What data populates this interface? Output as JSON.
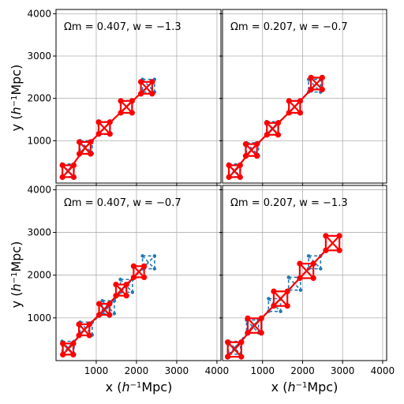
{
  "figure": {
    "xlabel": "x (h⁻¹Mpc)",
    "ylabel": "y (h⁻¹Mpc)"
  },
  "colors": {
    "reference": "#1f77b4",
    "model": "#ff0000",
    "grid": "#b0b0b0"
  },
  "chart_data": [
    {
      "type": "line",
      "annotation": "Ωm = 0.407,  w = −1.3",
      "xlim": [
        0,
        4100
      ],
      "ylim": [
        0,
        4100
      ],
      "xticks": [
        1000,
        2000,
        3000,
        4000
      ],
      "yticks": [
        1000,
        2000,
        3000,
        4000
      ],
      "grid": true,
      "series": [
        {
          "style": "dashed-blue",
          "centers": [
            [
              300,
              300
            ],
            [
              750,
              850
            ],
            [
              1200,
              1300
            ],
            [
              1750,
              1800
            ],
            [
              2300,
              2300
            ]
          ],
          "half": 150
        },
        {
          "style": "solid-red",
          "centers": [
            [
              300,
              280
            ],
            [
              720,
              830
            ],
            [
              1200,
              1300
            ],
            [
              1750,
              1800
            ],
            [
              2250,
              2250
            ]
          ],
          "half": 140
        }
      ]
    },
    {
      "type": "line",
      "annotation": "Ωm = 0.207,  w = −0.7",
      "xlim": [
        0,
        4100
      ],
      "ylim": [
        0,
        4100
      ],
      "xticks": [
        1000,
        2000,
        3000,
        4000
      ],
      "yticks": [
        1000,
        2000,
        3000,
        4000
      ],
      "grid": true,
      "series": [
        {
          "style": "dashed-blue",
          "centers": [
            [
              300,
              300
            ],
            [
              750,
              800
            ],
            [
              1250,
              1300
            ],
            [
              1800,
              1800
            ],
            [
              2300,
              2300
            ]
          ],
          "half": 150
        },
        {
          "style": "solid-red",
          "centers": [
            [
              300,
              280
            ],
            [
              720,
              780
            ],
            [
              1250,
              1280
            ],
            [
              1800,
              1800
            ],
            [
              2350,
              2350
            ]
          ],
          "half": 140
        }
      ]
    },
    {
      "type": "line",
      "annotation": "Ωm = 0.407,  w = −0.7",
      "xlim": [
        0,
        4100
      ],
      "ylim": [
        0,
        4100
      ],
      "xticks": [
        1000,
        2000,
        3000,
        4000
      ],
      "yticks": [
        1000,
        2000,
        3000,
        4000
      ],
      "grid": true,
      "series": [
        {
          "style": "dashed-blue",
          "centers": [
            [
              300,
              300
            ],
            [
              750,
              750
            ],
            [
              1300,
              1250
            ],
            [
              1750,
              1750
            ],
            [
              2300,
              2300
            ]
          ],
          "half": 150
        },
        {
          "style": "solid-red",
          "centers": [
            [
              300,
              270
            ],
            [
              700,
              720
            ],
            [
              1200,
              1200
            ],
            [
              1620,
              1650
            ],
            [
              2060,
              2080
            ]
          ],
          "half": 130
        }
      ]
    },
    {
      "type": "line",
      "annotation": "Ωm = 0.207,  w = −1.3",
      "xlim": [
        0,
        4100
      ],
      "ylim": [
        0,
        4100
      ],
      "xticks": [
        1000,
        2000,
        3000,
        4000
      ],
      "yticks": [
        1000,
        2000,
        3000,
        4000
      ],
      "grid": true,
      "series": [
        {
          "style": "dashed-blue",
          "centers": [
            [
              300,
              300
            ],
            [
              750,
              800
            ],
            [
              1300,
              1300
            ],
            [
              1800,
              1800
            ],
            [
              2300,
              2300
            ]
          ],
          "half": 150
        },
        {
          "style": "solid-red",
          "centers": [
            [
              300,
              260
            ],
            [
              800,
              820
            ],
            [
              1450,
              1450
            ],
            [
              2100,
              2100
            ],
            [
              2750,
              2750
            ]
          ],
          "half": 170
        }
      ]
    }
  ]
}
